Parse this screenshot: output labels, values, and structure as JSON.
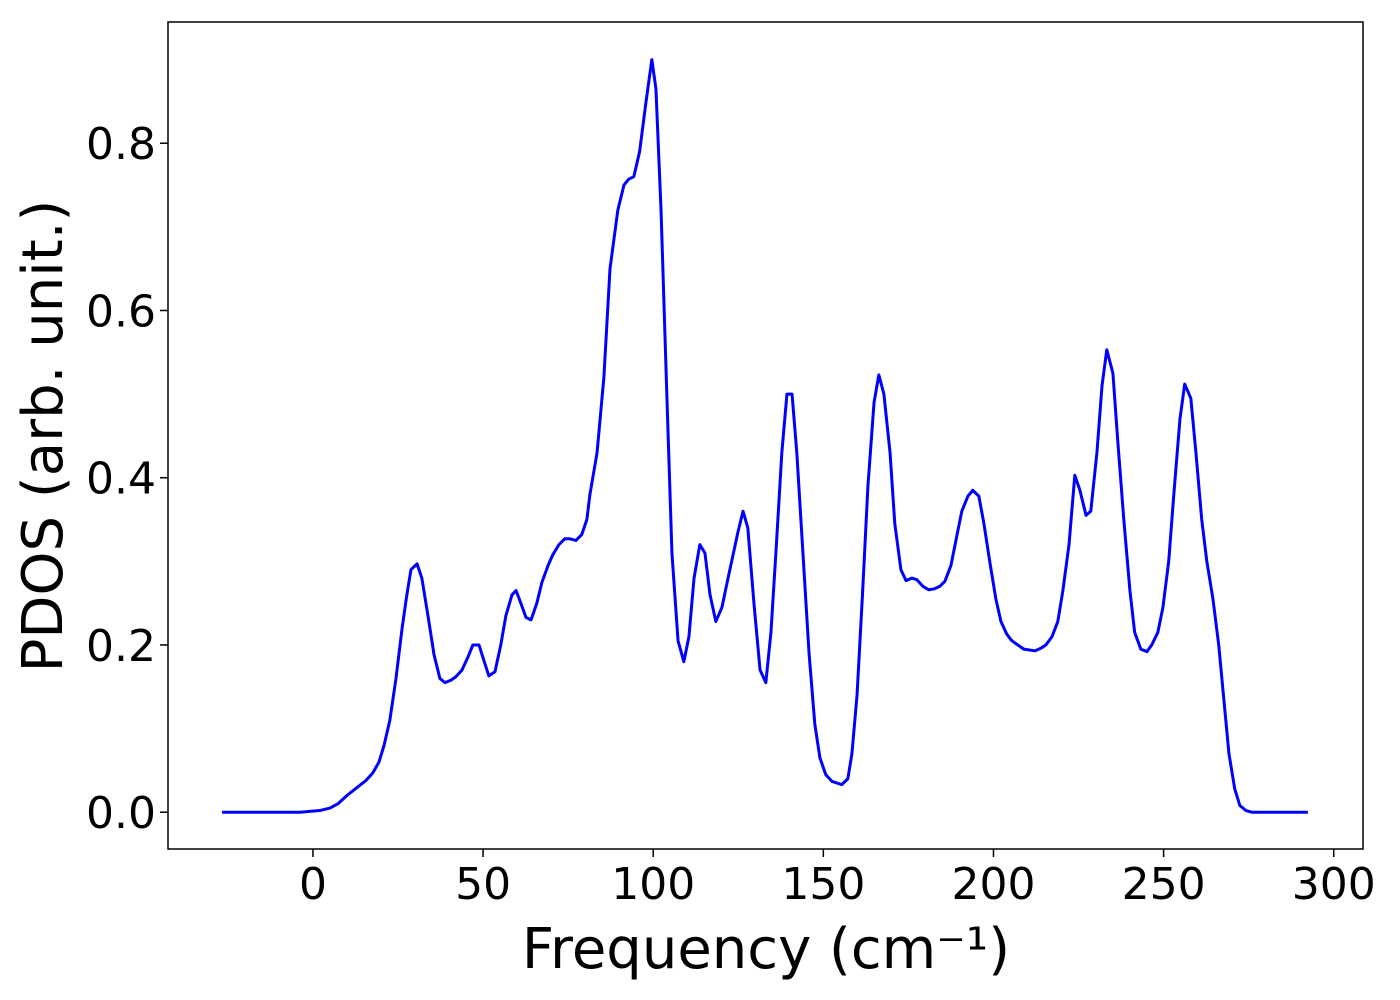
{
  "chart_data": {
    "type": "line",
    "xlabel": "Frequency (cm⁻¹)",
    "ylabel": "PDOS (arb. unit.)",
    "xlim": [
      -42.6,
      308.6
    ],
    "ylim": [
      -0.044,
      0.945
    ],
    "xticks": [
      0,
      50,
      100,
      150,
      200,
      250,
      300
    ],
    "yticks": [
      {
        "value": 0,
        "label": "0.0"
      },
      0.2,
      0.4,
      0.6,
      0.8
    ],
    "x": [
      -26.7,
      -3.8,
      2,
      5,
      7.3,
      10,
      15.6,
      17.6,
      19.4,
      20.9,
      22.6,
      24.4,
      26.2,
      27.6,
      28.8,
      30.6,
      32,
      33.8,
      35.6,
      37.3,
      38.8,
      40.6,
      42,
      43.8,
      45.5,
      47,
      48.8,
      50.2,
      51.7,
      53.5,
      55.2,
      56.7,
      58.5,
      59.7,
      61.1,
      62.6,
      64.1,
      65.8,
      67.3,
      69.1,
      70.5,
      72.3,
      74,
      75.5,
      77.3,
      79,
      80.5,
      81.4,
      83.5,
      85.5,
      87.3,
      89.6,
      91.4,
      92.8,
      94.3,
      96,
      97.9,
      99.6,
      100.8,
      102.3,
      104,
      105.5,
      107.3,
      109,
      110.5,
      112,
      113.7,
      115.2,
      116.7,
      118.4,
      120.2,
      122,
      124.9,
      126.4,
      127.8,
      129.6,
      131.4,
      133.1,
      134.6,
      136.2,
      137.8,
      139.3,
      140.8,
      142.2,
      144,
      145.8,
      147.5,
      149,
      150.7,
      152.5,
      155.4,
      157.2,
      158.4,
      159.9,
      161.5,
      163.1,
      164.9,
      166.3,
      167.8,
      169.6,
      171,
      172.8,
      174.3,
      176,
      177.5,
      179.3,
      181,
      182.5,
      184.2,
      185.7,
      187.5,
      189.2,
      190.7,
      192.5,
      193.9,
      195.7,
      197.2,
      198.9,
      200.7,
      202.2,
      203.9,
      205.4,
      208.9,
      212.2,
      213.9,
      215.4,
      217.2,
      218.9,
      220.4,
      222.2,
      223.9,
      225.4,
      227.2,
      228.6,
      230.4,
      231.9,
      233.3,
      235.1,
      236.6,
      238.3,
      240.1,
      241.5,
      243.3,
      245.1,
      246.5,
      248.3,
      249.8,
      251.5,
      253,
      254.8,
      256.2,
      258,
      259.5,
      261.2,
      262.7,
      264.5,
      266.2,
      267.7,
      269.2,
      270.9,
      272.4,
      274.2,
      275.9,
      292.4
    ],
    "series": [
      {
        "color": "#0000ff",
        "values": [
          0,
          0,
          0.002,
          0.005,
          0.01,
          0.02,
          0.038,
          0.047,
          0.06,
          0.08,
          0.11,
          0.16,
          0.22,
          0.26,
          0.29,
          0.297,
          0.28,
          0.235,
          0.188,
          0.16,
          0.155,
          0.158,
          0.162,
          0.17,
          0.185,
          0.2,
          0.2,
          0.182,
          0.163,
          0.168,
          0.2,
          0.235,
          0.26,
          0.265,
          0.25,
          0.233,
          0.23,
          0.25,
          0.275,
          0.295,
          0.308,
          0.32,
          0.327,
          0.327,
          0.325,
          0.332,
          0.35,
          0.38,
          0.43,
          0.52,
          0.65,
          0.72,
          0.75,
          0.757,
          0.76,
          0.79,
          0.85,
          0.9,
          0.865,
          0.72,
          0.5,
          0.31,
          0.205,
          0.18,
          0.21,
          0.28,
          0.32,
          0.31,
          0.26,
          0.228,
          0.245,
          0.28,
          0.335,
          0.36,
          0.34,
          0.25,
          0.17,
          0.155,
          0.215,
          0.32,
          0.43,
          0.5,
          0.5,
          0.43,
          0.31,
          0.19,
          0.105,
          0.065,
          0.045,
          0.037,
          0.033,
          0.04,
          0.07,
          0.14,
          0.26,
          0.39,
          0.49,
          0.523,
          0.5,
          0.43,
          0.345,
          0.29,
          0.277,
          0.28,
          0.278,
          0.27,
          0.266,
          0.267,
          0.27,
          0.276,
          0.295,
          0.33,
          0.36,
          0.378,
          0.385,
          0.378,
          0.345,
          0.3,
          0.255,
          0.228,
          0.213,
          0.205,
          0.195,
          0.193,
          0.196,
          0.2,
          0.21,
          0.228,
          0.265,
          0.32,
          0.403,
          0.385,
          0.355,
          0.36,
          0.43,
          0.51,
          0.553,
          0.525,
          0.44,
          0.35,
          0.265,
          0.215,
          0.195,
          0.192,
          0.2,
          0.215,
          0.245,
          0.3,
          0.38,
          0.47,
          0.512,
          0.495,
          0.43,
          0.35,
          0.3,
          0.255,
          0.2,
          0.135,
          0.07,
          0.028,
          0.008,
          0.002,
          0,
          0
        ]
      }
    ]
  }
}
